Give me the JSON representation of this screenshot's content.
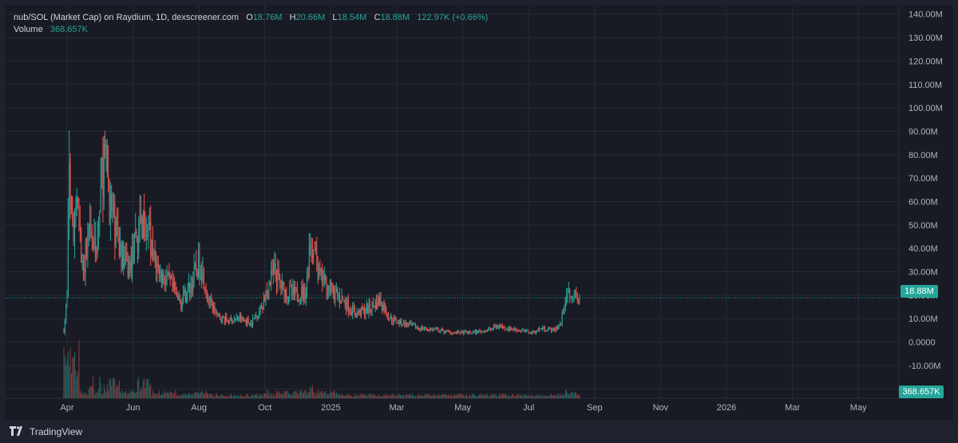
{
  "legend": {
    "symbol": "nub/SOL (Market Cap) on Raydium, 1D, dexscreener.com",
    "o_key": "O",
    "o_val": "18.76M",
    "h_key": "H",
    "h_val": "20.66M",
    "l_key": "L",
    "l_val": "18.54M",
    "c_key": "C",
    "c_val": "18.88M",
    "change": "122.97K (+0.66%)",
    "volume_label": "Volume",
    "volume_val": "368.657K"
  },
  "badges": {
    "price": "18.88M",
    "volume": "368.657K"
  },
  "footer": {
    "brand": "TradingView"
  },
  "colors": {
    "up": "#26a69a",
    "down": "#ef5350",
    "background": "#181b24",
    "grid": "#262a35",
    "text": "#b2b5be"
  },
  "chart_data": {
    "type": "candlestick",
    "x_ticks": [
      "Apr",
      "Jun",
      "Aug",
      "Oct",
      "2025",
      "Mar",
      "May",
      "Jul",
      "Sep",
      "Nov",
      "2026",
      "Mar",
      "May"
    ],
    "y_ticks": [
      "140.00M",
      "130.00M",
      "120.00M",
      "110.00M",
      "100.00M",
      "90.00M",
      "80.00M",
      "70.00M",
      "60.00M",
      "50.00M",
      "40.00M",
      "30.00M",
      "20.00M",
      "10.00M",
      "0.0000",
      "-10.00M",
      "-20.00M"
    ],
    "y_range": [
      -24,
      144
    ],
    "last_price": 18.88,
    "close_series_M": [
      {
        "d": "2024-03-29",
        "v": 5
      },
      {
        "d": "2024-04-01",
        "v": 18
      },
      {
        "d": "2024-04-03",
        "v": 75
      },
      {
        "d": "2024-04-06",
        "v": 45
      },
      {
        "d": "2024-04-10",
        "v": 60
      },
      {
        "d": "2024-04-15",
        "v": 32
      },
      {
        "d": "2024-04-22",
        "v": 45
      },
      {
        "d": "2024-04-28",
        "v": 38
      },
      {
        "d": "2024-05-05",
        "v": 80
      },
      {
        "d": "2024-05-12",
        "v": 55
      },
      {
        "d": "2024-05-20",
        "v": 40
      },
      {
        "d": "2024-05-28",
        "v": 30
      },
      {
        "d": "2024-06-05",
        "v": 45
      },
      {
        "d": "2024-06-12",
        "v": 55
      },
      {
        "d": "2024-06-20",
        "v": 35
      },
      {
        "d": "2024-06-28",
        "v": 28
      },
      {
        "d": "2024-07-05",
        "v": 25
      },
      {
        "d": "2024-07-15",
        "v": 16
      },
      {
        "d": "2024-07-25",
        "v": 25
      },
      {
        "d": "2024-08-02",
        "v": 35
      },
      {
        "d": "2024-08-10",
        "v": 18
      },
      {
        "d": "2024-08-18",
        "v": 11
      },
      {
        "d": "2024-08-28",
        "v": 9
      },
      {
        "d": "2024-09-08",
        "v": 10
      },
      {
        "d": "2024-09-18",
        "v": 8
      },
      {
        "d": "2024-09-28",
        "v": 15
      },
      {
        "d": "2024-10-05",
        "v": 25
      },
      {
        "d": "2024-10-10",
        "v": 30
      },
      {
        "d": "2024-10-18",
        "v": 22
      },
      {
        "d": "2024-10-28",
        "v": 20
      },
      {
        "d": "2024-11-08",
        "v": 22
      },
      {
        "d": "2024-11-12",
        "v": 45
      },
      {
        "d": "2024-11-20",
        "v": 28
      },
      {
        "d": "2024-12-01",
        "v": 22
      },
      {
        "d": "2024-12-12",
        "v": 18
      },
      {
        "d": "2024-12-24",
        "v": 12
      },
      {
        "d": "2025-01-05",
        "v": 14
      },
      {
        "d": "2025-01-15",
        "v": 18
      },
      {
        "d": "2025-01-25",
        "v": 10
      },
      {
        "d": "2025-02-05",
        "v": 8
      },
      {
        "d": "2025-02-20",
        "v": 6
      },
      {
        "d": "2025-03-10",
        "v": 5
      },
      {
        "d": "2025-03-25",
        "v": 4
      },
      {
        "d": "2025-04-10",
        "v": 4
      },
      {
        "d": "2025-04-25",
        "v": 5
      },
      {
        "d": "2025-05-05",
        "v": 7
      },
      {
        "d": "2025-05-12",
        "v": 6
      },
      {
        "d": "2025-05-25",
        "v": 5
      },
      {
        "d": "2025-06-05",
        "v": 4
      },
      {
        "d": "2025-06-15",
        "v": 6
      },
      {
        "d": "2025-06-25",
        "v": 5
      },
      {
        "d": "2025-07-02",
        "v": 8
      },
      {
        "d": "2025-07-06",
        "v": 20
      },
      {
        "d": "2025-07-12",
        "v": 22
      },
      {
        "d": "2025-07-20",
        "v": 18.88
      }
    ]
  }
}
